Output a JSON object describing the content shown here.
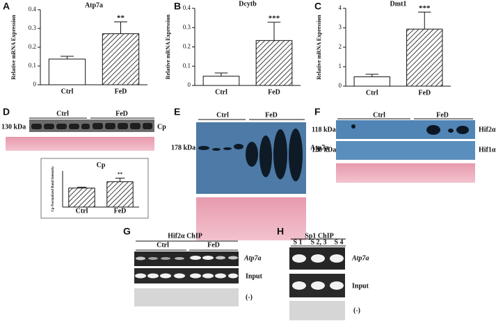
{
  "chart_data": [
    {
      "type": "bar",
      "panel": "A",
      "title": "Atp7a",
      "y_label": "Relative mRNA Expression",
      "categories": [
        "Ctrl",
        "FeD"
      ],
      "values": [
        0.137,
        0.272
      ],
      "errors": [
        0.015,
        0.063
      ],
      "significance": "**",
      "bar_fills": [
        "#ffffff",
        "hatch"
      ],
      "ylim": [
        0,
        0.4
      ],
      "yticks": [
        0,
        0.1,
        0.2,
        0.3,
        0.4
      ]
    },
    {
      "type": "bar",
      "panel": "B",
      "title": "Dcytb",
      "y_label": "Relative mRNA Expression",
      "categories": [
        "Ctrl",
        "FeD"
      ],
      "values": [
        0.048,
        0.233
      ],
      "errors": [
        0.017,
        0.095
      ],
      "significance": "***",
      "bar_fills": [
        "#ffffff",
        "hatch"
      ],
      "ylim": [
        0,
        0.4
      ],
      "yticks": [
        0,
        0.1,
        0.2,
        0.3,
        0.4
      ]
    },
    {
      "type": "bar",
      "panel": "C",
      "title": "Dmt1",
      "y_label": "Relative mRNA Expression",
      "categories": [
        "Ctrl",
        "FeD"
      ],
      "values": [
        0.48,
        2.93
      ],
      "errors": [
        0.13,
        0.88
      ],
      "significance": "***",
      "bar_fills": [
        "#ffffff",
        "hatch"
      ],
      "ylim": [
        0,
        4
      ],
      "yticks": [
        0,
        1,
        2,
        3,
        4
      ]
    },
    {
      "type": "bar",
      "title": "Cp",
      "y_label": "Cp Normalized Band Intensity",
      "categories": [
        "Ctrl",
        "FeD"
      ],
      "values": [
        1.05,
        1.4
      ],
      "errors": [
        0.05,
        0.2
      ],
      "significance": "**",
      "bar_fills": [
        "hatch",
        "hatch"
      ],
      "ylim": [
        0,
        2
      ]
    }
  ],
  "blots": [
    {
      "panel": "D",
      "groups": [
        "Ctrl",
        "FeD"
      ],
      "markers": [
        "130 kDa"
      ],
      "targets": [
        "Cp"
      ]
    },
    {
      "panel": "E",
      "groups": [
        "Ctrl",
        "FeD"
      ],
      "markers": [
        "178 kDa"
      ],
      "targets": [
        "Atp7a"
      ]
    },
    {
      "panel": "F",
      "groups": [
        "Ctrl",
        "FeD"
      ],
      "markers": [
        "118 kDa",
        "120 kDa"
      ],
      "targets": [
        "Hif2α",
        "Hif1α"
      ]
    }
  ],
  "chip": [
    {
      "panel": "G",
      "title": "Hif2α ChIP",
      "groups": [
        "Ctrl",
        "FeD"
      ],
      "rows": [
        "Atp7a",
        "Input",
        "(-)"
      ]
    },
    {
      "panel": "H",
      "title": "Sp1 ChIP",
      "groups": [
        "S 1",
        "S 2, 3",
        "S 4"
      ],
      "rows": [
        "Atp7a",
        "Input",
        "(-)"
      ]
    }
  ]
}
